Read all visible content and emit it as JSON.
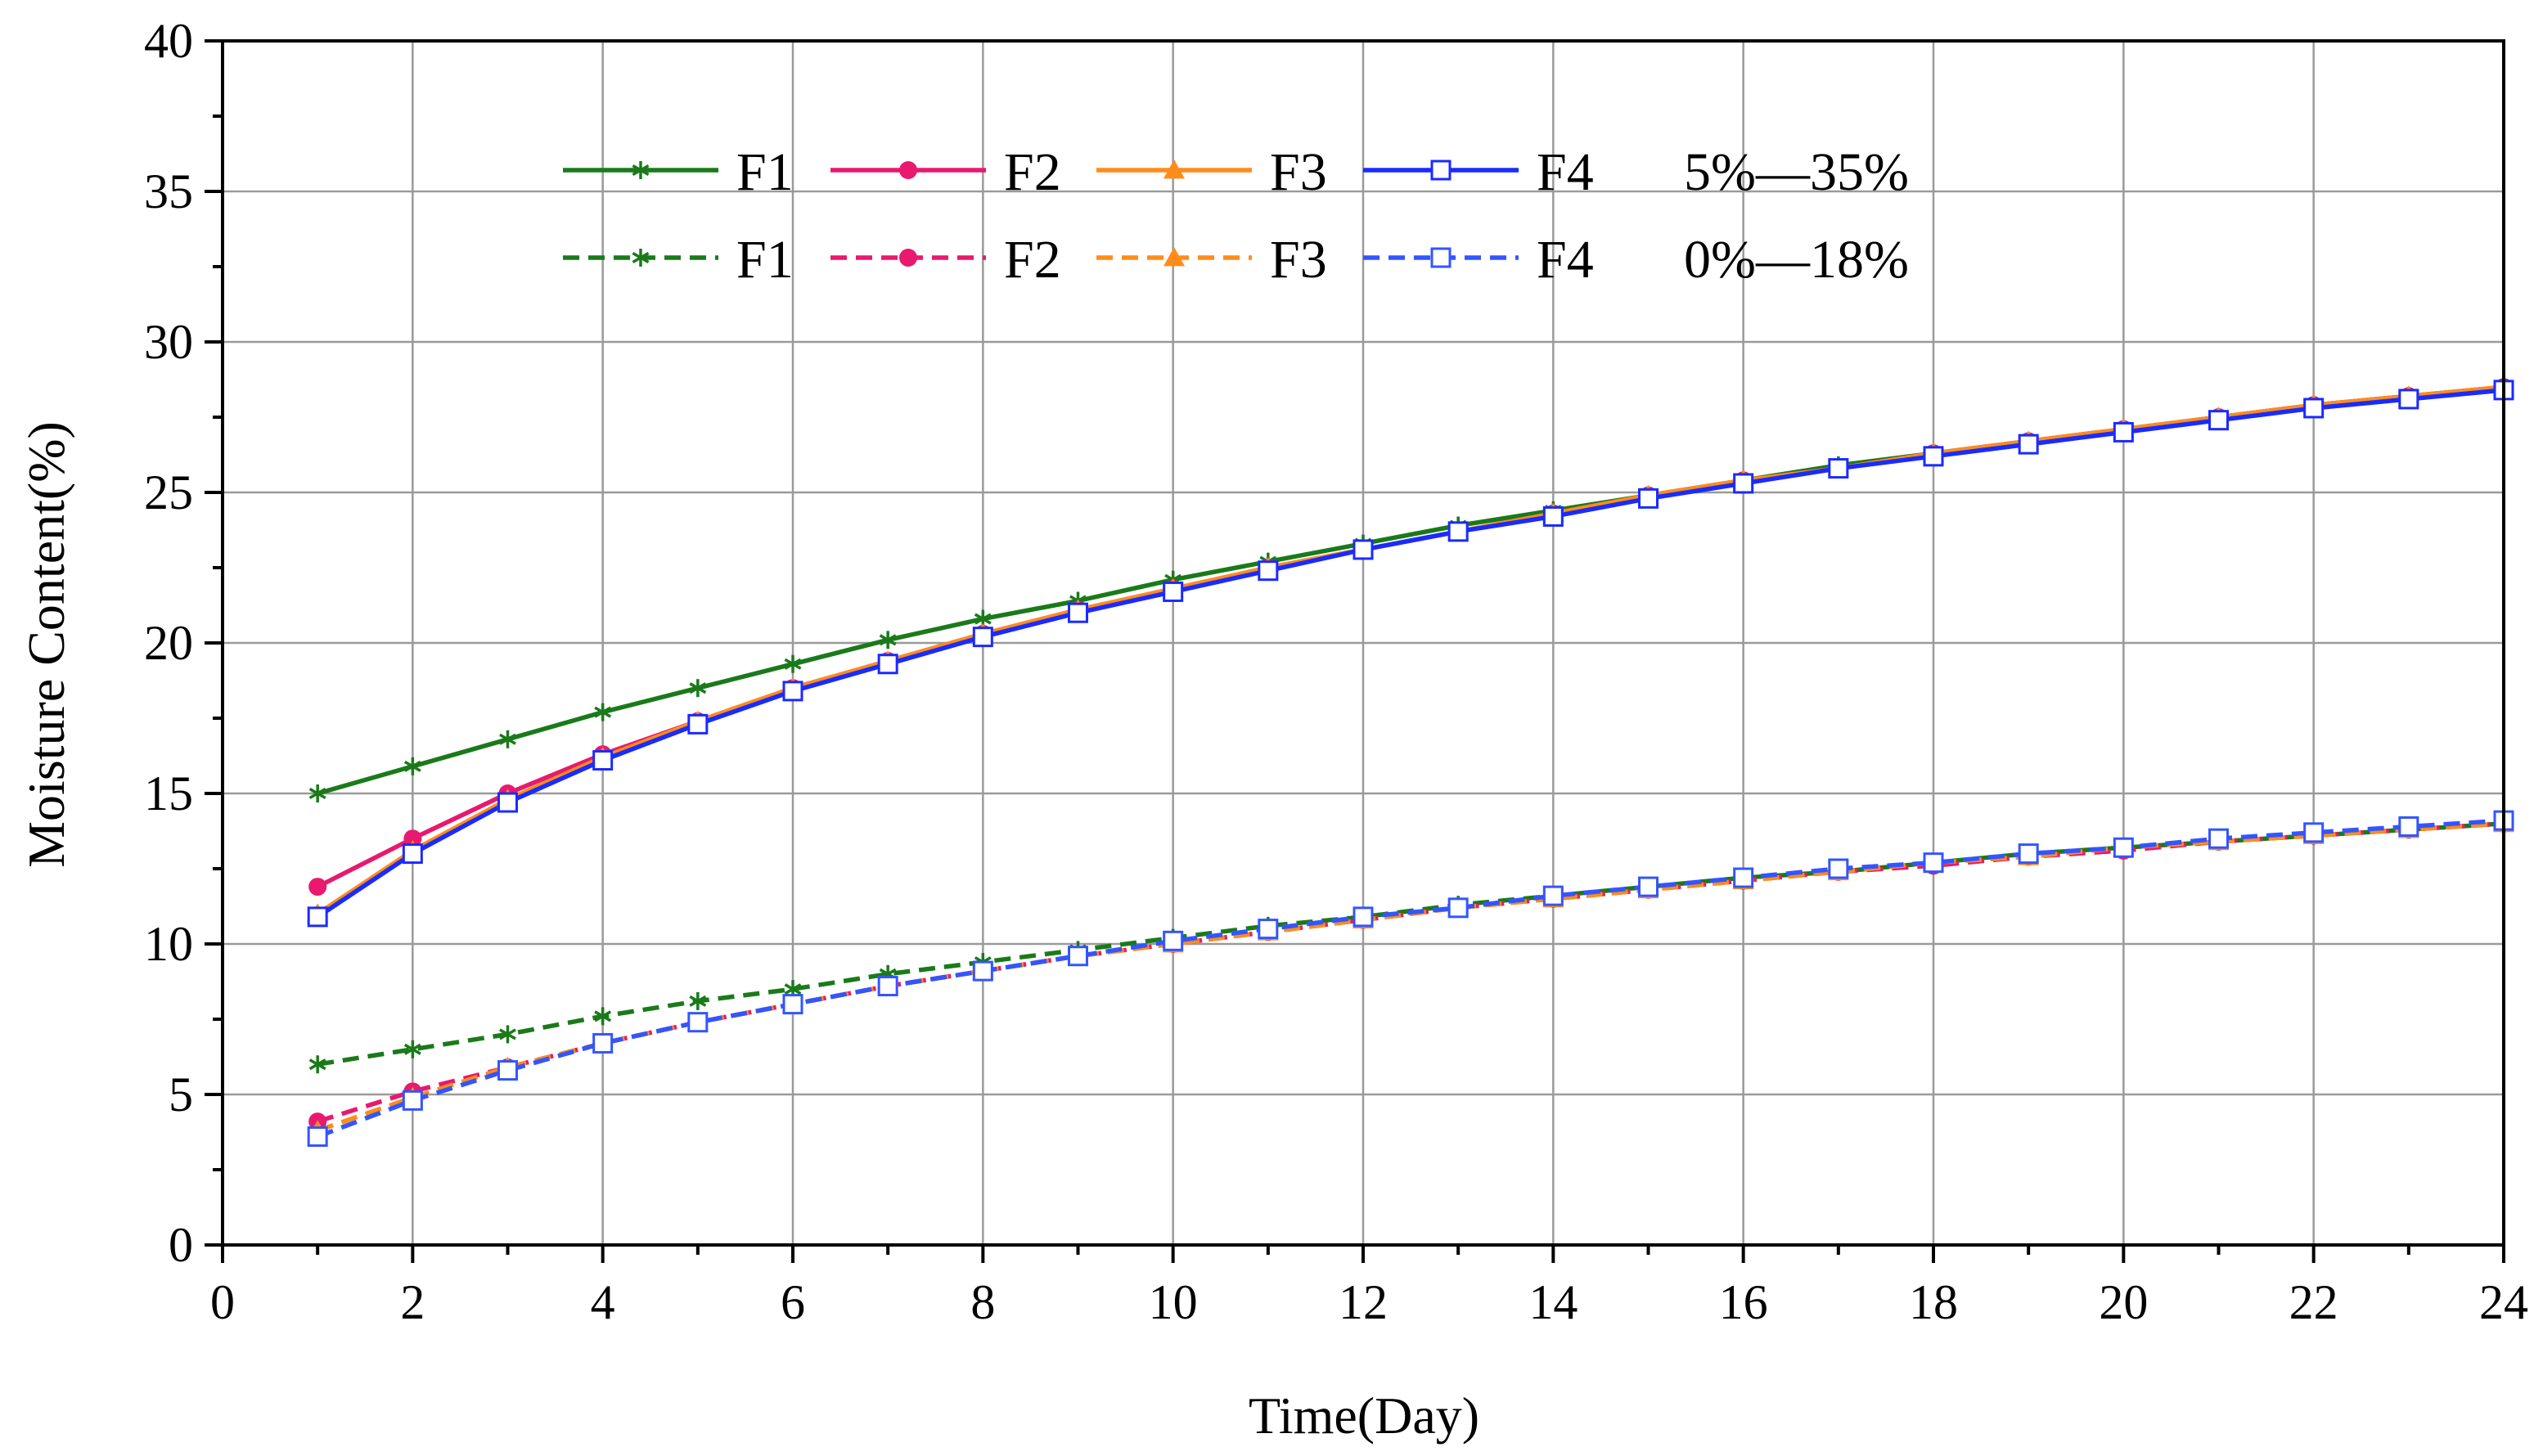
{
  "chart_data": {
    "type": "line",
    "title": "",
    "xlabel": "Time(Day)",
    "ylabel": "Moisture Content(%)",
    "xlim": [
      0,
      24
    ],
    "ylim": [
      0,
      40
    ],
    "xticks": [
      0,
      2,
      4,
      6,
      8,
      10,
      12,
      14,
      16,
      18,
      20,
      22,
      24
    ],
    "yticks": [
      0,
      5,
      10,
      15,
      20,
      25,
      30,
      35,
      40
    ],
    "x": [
      1,
      2,
      3,
      4,
      5,
      6,
      7,
      8,
      9,
      10,
      11,
      12,
      13,
      14,
      15,
      16,
      17,
      18,
      19,
      20,
      21,
      22,
      23,
      24
    ],
    "grid": true,
    "legend_position": "top-center",
    "legend_group_labels": [
      "5%—35%",
      "0%—18%"
    ],
    "series": [
      {
        "name": "F1",
        "group": "5%—35%",
        "color": "#1a7a1a",
        "marker": "asterisk",
        "dash": "solid",
        "values": [
          15.0,
          15.9,
          16.8,
          17.7,
          18.5,
          19.3,
          20.1,
          20.8,
          21.4,
          22.1,
          22.7,
          23.3,
          23.9,
          24.4,
          24.9,
          25.4,
          25.9,
          26.3,
          26.7,
          27.1,
          27.5,
          27.9,
          28.2,
          28.5
        ]
      },
      {
        "name": "F2",
        "group": "5%—35%",
        "color": "#e8196e",
        "marker": "circle",
        "dash": "solid",
        "values": [
          11.9,
          13.5,
          15.0,
          16.3,
          17.4,
          18.5,
          19.4,
          20.3,
          21.1,
          21.8,
          22.5,
          23.1,
          23.7,
          24.3,
          24.9,
          25.4,
          25.8,
          26.3,
          26.7,
          27.1,
          27.5,
          27.9,
          28.2,
          28.5
        ]
      },
      {
        "name": "F3",
        "group": "5%—35%",
        "color": "#ff8c1a",
        "marker": "triangle",
        "dash": "solid",
        "values": [
          11.0,
          13.1,
          14.8,
          16.2,
          17.4,
          18.5,
          19.4,
          20.3,
          21.1,
          21.8,
          22.5,
          23.1,
          23.7,
          24.3,
          24.9,
          25.4,
          25.8,
          26.3,
          26.7,
          27.1,
          27.5,
          27.9,
          28.2,
          28.5
        ]
      },
      {
        "name": "F4",
        "group": "5%—35%",
        "color": "#1a2bff",
        "marker": "square",
        "dash": "solid",
        "values": [
          10.9,
          13.0,
          14.7,
          16.1,
          17.3,
          18.4,
          19.3,
          20.2,
          21.0,
          21.7,
          22.4,
          23.1,
          23.7,
          24.2,
          24.8,
          25.3,
          25.8,
          26.2,
          26.6,
          27.0,
          27.4,
          27.8,
          28.1,
          28.4
        ]
      },
      {
        "name": "F1",
        "group": "0%—18%",
        "color": "#1a7a1a",
        "marker": "asterisk",
        "dash": "dashed",
        "values": [
          6.0,
          6.5,
          7.0,
          7.6,
          8.1,
          8.5,
          9.0,
          9.4,
          9.8,
          10.2,
          10.6,
          10.9,
          11.3,
          11.6,
          11.9,
          12.2,
          12.4,
          12.7,
          13.0,
          13.2,
          13.4,
          13.6,
          13.8,
          14.0
        ]
      },
      {
        "name": "F2",
        "group": "0%—18%",
        "color": "#e8196e",
        "marker": "circle",
        "dash": "dashed",
        "values": [
          4.1,
          5.1,
          5.9,
          6.7,
          7.4,
          8.0,
          8.6,
          9.1,
          9.6,
          10.0,
          10.4,
          10.8,
          11.2,
          11.5,
          11.8,
          12.1,
          12.4,
          12.6,
          12.9,
          13.1,
          13.4,
          13.6,
          13.8,
          14.0
        ]
      },
      {
        "name": "F3",
        "group": "0%—18%",
        "color": "#ff8c1a",
        "marker": "triangle",
        "dash": "dashed",
        "values": [
          3.8,
          4.9,
          5.9,
          6.7,
          7.4,
          8.0,
          8.6,
          9.1,
          9.6,
          10.0,
          10.4,
          10.8,
          11.2,
          11.5,
          11.8,
          12.1,
          12.4,
          12.7,
          12.9,
          13.2,
          13.4,
          13.6,
          13.8,
          14.0
        ]
      },
      {
        "name": "F4",
        "group": "0%—18%",
        "color": "#3355ff",
        "marker": "square",
        "dash": "dashed",
        "values": [
          3.6,
          4.8,
          5.8,
          6.7,
          7.4,
          8.0,
          8.6,
          9.1,
          9.6,
          10.1,
          10.5,
          10.9,
          11.2,
          11.6,
          11.9,
          12.2,
          12.5,
          12.7,
          13.0,
          13.2,
          13.5,
          13.7,
          13.9,
          14.1
        ]
      }
    ]
  }
}
